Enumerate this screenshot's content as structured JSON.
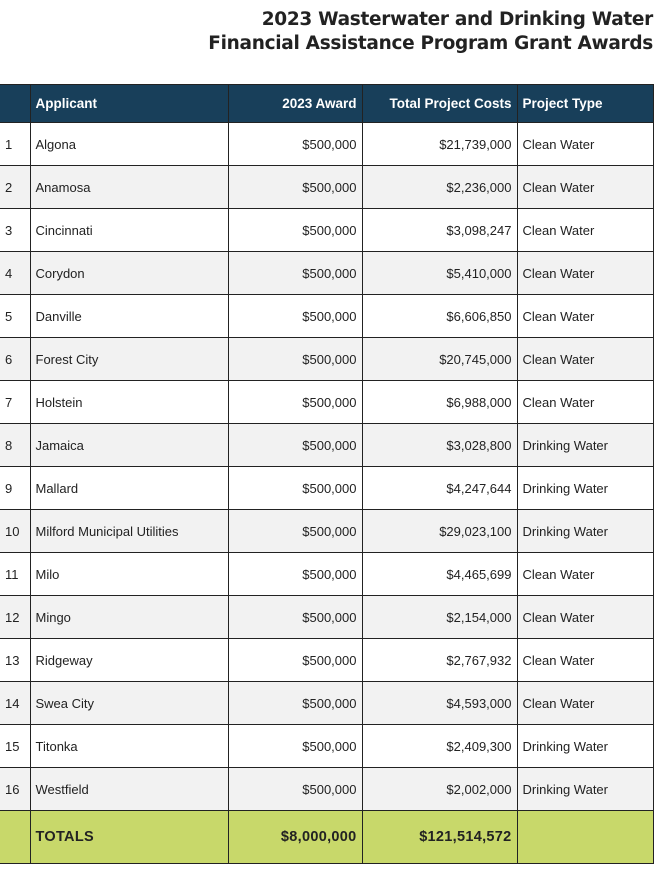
{
  "title": {
    "line1": "2023 Wasterwater and Drinking Water",
    "line2": "Financial Assistance Program Grant Awards"
  },
  "table": {
    "headers": [
      "",
      "Applicant",
      "2023 Award",
      "Total Project Costs",
      "Project Type"
    ],
    "rows": [
      {
        "num": "1",
        "applicant": "Algona",
        "award": "$500,000",
        "cost": "$21,739,000",
        "type": "Clean Water"
      },
      {
        "num": "2",
        "applicant": "Anamosa",
        "award": "$500,000",
        "cost": "$2,236,000",
        "type": "Clean Water"
      },
      {
        "num": "3",
        "applicant": "Cincinnati",
        "award": "$500,000",
        "cost": "$3,098,247",
        "type": "Clean Water"
      },
      {
        "num": "4",
        "applicant": "Corydon",
        "award": "$500,000",
        "cost": "$5,410,000",
        "type": "Clean Water"
      },
      {
        "num": "5",
        "applicant": "Danville",
        "award": "$500,000",
        "cost": "$6,606,850",
        "type": "Clean Water"
      },
      {
        "num": "6",
        "applicant": "Forest City",
        "award": "$500,000",
        "cost": "$20,745,000",
        "type": "Clean Water"
      },
      {
        "num": "7",
        "applicant": "Holstein",
        "award": "$500,000",
        "cost": "$6,988,000",
        "type": "Clean Water"
      },
      {
        "num": "8",
        "applicant": "Jamaica",
        "award": "$500,000",
        "cost": "$3,028,800",
        "type": "Drinking Water"
      },
      {
        "num": "9",
        "applicant": "Mallard",
        "award": "$500,000",
        "cost": "$4,247,644",
        "type": "Drinking Water"
      },
      {
        "num": "10",
        "applicant": "Milford Municipal Utilities",
        "award": "$500,000",
        "cost": "$29,023,100",
        "type": "Drinking Water"
      },
      {
        "num": "11",
        "applicant": "Milo",
        "award": "$500,000",
        "cost": "$4,465,699",
        "type": "Clean Water"
      },
      {
        "num": "12",
        "applicant": "Mingo",
        "award": "$500,000",
        "cost": "$2,154,000",
        "type": "Clean Water"
      },
      {
        "num": "13",
        "applicant": "Ridgeway",
        "award": "$500,000",
        "cost": "$2,767,932",
        "type": "Clean Water"
      },
      {
        "num": "14",
        "applicant": "Swea City",
        "award": "$500,000",
        "cost": "$4,593,000",
        "type": "Clean Water"
      },
      {
        "num": "15",
        "applicant": "Titonka",
        "award": "$500,000",
        "cost": "$2,409,300",
        "type": "Drinking Water"
      },
      {
        "num": "16",
        "applicant": "Westfield",
        "award": "$500,000",
        "cost": "$2,002,000",
        "type": "Drinking Water"
      }
    ],
    "totals": {
      "label": "TOTALS",
      "award": "$8,000,000",
      "cost": "$121,514,572"
    }
  },
  "colors": {
    "header_bg": "#183f5a",
    "totals_bg": "#c8d86a",
    "alt_row": "#f2f2f2"
  }
}
